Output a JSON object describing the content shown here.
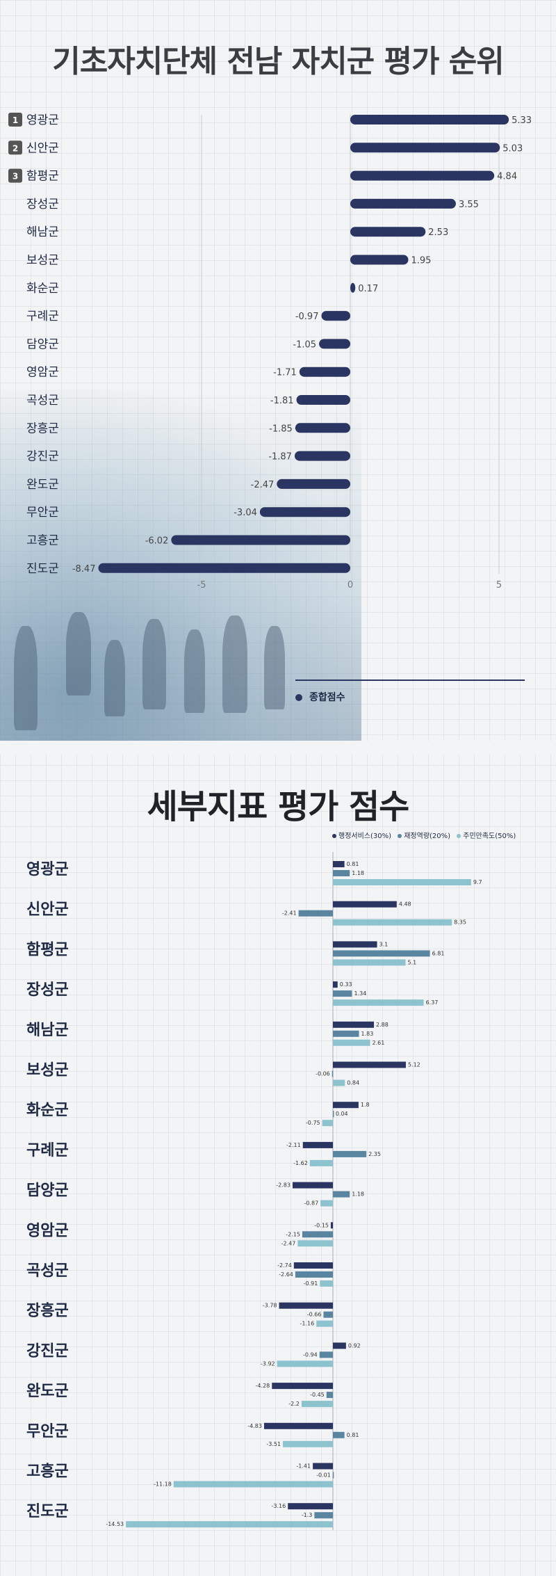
{
  "titles": {
    "total": "기초자치단체 전남 자치군 평가 순위",
    "detail": "세부지표 평가 점수"
  },
  "colors": {
    "total_bar": "#2b3561",
    "admin_service": "#2b3561",
    "finance": "#5a85a0",
    "satisfaction": "#8cc3cf"
  },
  "legend": {
    "total": "종합점수",
    "admin_service": "행정서비스(30%)",
    "finance": "재정역량(20%)",
    "satisfaction": "주민만족도(50%)"
  },
  "chart_data": [
    {
      "type": "bar",
      "orientation": "horizontal",
      "title": "기초자치단체 전남 자치군 평가 순위",
      "categories": [
        "영광군",
        "신안군",
        "함평군",
        "장성군",
        "해남군",
        "보성군",
        "화순군",
        "구례군",
        "담양군",
        "영암군",
        "곡성군",
        "장흥군",
        "강진군",
        "완도군",
        "무안군",
        "고흥군",
        "진도군"
      ],
      "ranks": [
        "1",
        "2",
        "3"
      ],
      "series": [
        {
          "name": "종합점수",
          "values": [
            5.33,
            5.03,
            4.84,
            3.55,
            2.53,
            1.95,
            0.17,
            -0.97,
            -1.05,
            -1.71,
            -1.81,
            -1.85,
            -1.87,
            -2.47,
            -3.04,
            -6.02,
            -8.47
          ]
        }
      ],
      "value_labels": [
        "5.33",
        "5.03",
        "4.84",
        "3.55",
        "2.53",
        "1.95",
        "0.17",
        "-0.97",
        "-1.05",
        "-1.71",
        "-1.81",
        "-1.85",
        "-1.87",
        "-2.47",
        "-3.04",
        "-6.02",
        "-8.47"
      ],
      "xlim": [
        -9,
        6
      ],
      "xticks": [
        -5,
        0,
        5
      ],
      "xtick_labels": [
        "-5",
        "0",
        "5"
      ],
      "grid": true,
      "legend_position": "bottom-right"
    },
    {
      "type": "bar",
      "orientation": "horizontal",
      "title": "세부지표 평가 점수",
      "categories": [
        "영광군",
        "신안군",
        "함평군",
        "장성군",
        "해남군",
        "보성군",
        "화순군",
        "구례군",
        "담양군",
        "영암군",
        "곡성군",
        "장흥군",
        "강진군",
        "완도군",
        "무안군",
        "고흥군",
        "진도군"
      ],
      "series": [
        {
          "name": "행정서비스(30%)",
          "values": [
            0.81,
            4.48,
            3.1,
            0.33,
            2.88,
            5.12,
            1.8,
            -2.11,
            -2.83,
            -0.15,
            -2.74,
            -3.78,
            0.92,
            -4.28,
            -4.83,
            -1.41,
            -3.16
          ],
          "labels": [
            "0.81",
            "4.48",
            "3.1",
            "0.33",
            "2.88",
            "5.12",
            "1.8",
            "-2.11",
            "-2.83",
            "-0.15",
            "-2.74",
            "-3.78",
            "0.92",
            "-4.28",
            "-4.83",
            "-1.41",
            "-3.16"
          ]
        },
        {
          "name": "재정역량(20%)",
          "values": [
            1.18,
            -2.41,
            6.81,
            1.34,
            1.83,
            -0.06,
            0.04,
            2.35,
            1.18,
            -2.15,
            -2.64,
            -0.66,
            -0.94,
            -0.45,
            0.81,
            -0.01,
            -1.3
          ],
          "labels": [
            "1.18",
            "-2.41",
            "6.81",
            "1.34",
            "1.83",
            "-0.06",
            "0.04",
            "2.35",
            "1.18",
            "-2.15",
            "-2.64",
            "-0.66",
            "-0.94",
            "-0.45",
            "0.81",
            "-0.01",
            "-1.3"
          ]
        },
        {
          "name": "주민만족도(50%)",
          "values": [
            9.7,
            8.35,
            5.1,
            6.37,
            2.61,
            0.84,
            -0.75,
            -1.62,
            -0.87,
            -2.47,
            -0.91,
            -1.16,
            -3.92,
            -2.2,
            -3.51,
            -11.18,
            -14.53
          ],
          "labels": [
            "9.7",
            "8.35",
            "5.1",
            "6.37",
            "2.61",
            "0.84",
            "-0.75",
            "-1.62",
            "-0.87",
            "-2.47",
            "-0.91",
            "-1.16",
            "-3.92",
            "-2.2",
            "-3.51",
            "-11.18",
            "-14.53"
          ]
        }
      ],
      "xlim": [
        -15,
        11
      ],
      "grid": false,
      "legend_position": "top-right"
    }
  ]
}
